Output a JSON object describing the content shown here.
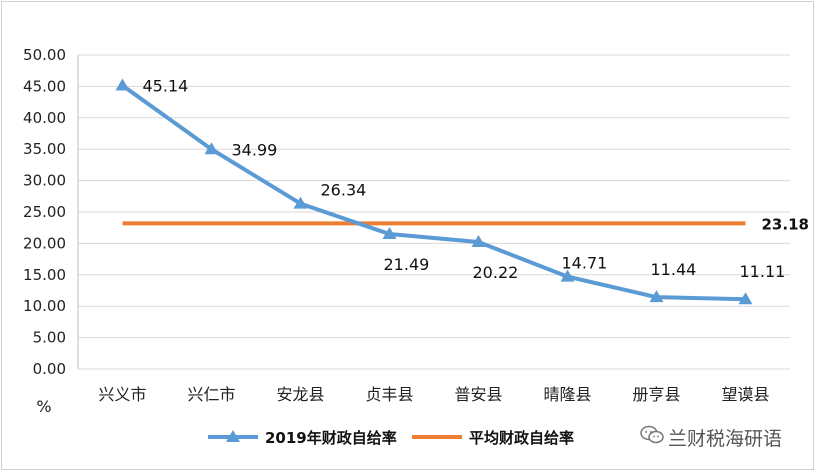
{
  "chart_data": {
    "type": "line",
    "categories": [
      "兴义市",
      "兴仁市",
      "安龙县",
      "贞丰县",
      "普安县",
      "晴隆县",
      "册亨县",
      "望谟县"
    ],
    "series": [
      {
        "name": "2019年财政自给率",
        "values": [
          45.14,
          34.99,
          26.34,
          21.49,
          20.22,
          14.71,
          11.44,
          11.11
        ],
        "labels": [
          "45.14",
          "34.99",
          "26.34",
          "21.49",
          "20.22",
          "14.71",
          "11.44",
          "11.11"
        ],
        "color": "#5b9bd5",
        "marker": "triangle"
      },
      {
        "name": "平均财政自给率",
        "values": [
          23.18,
          23.18,
          23.18,
          23.18,
          23.18,
          23.18,
          23.18,
          23.18
        ],
        "label": "23.18",
        "color": "#ed7d31"
      }
    ],
    "ylim": [
      0,
      50
    ],
    "yticks": [
      "0.00",
      "5.00",
      "10.00",
      "15.00",
      "20.00",
      "25.00",
      "30.00",
      "35.00",
      "40.00",
      "45.00",
      "50.00"
    ],
    "ylabel": "%",
    "grid": true,
    "legend": "bottom"
  },
  "watermark": {
    "text": "兰财税海研语",
    "icon": "wechat-icon"
  }
}
